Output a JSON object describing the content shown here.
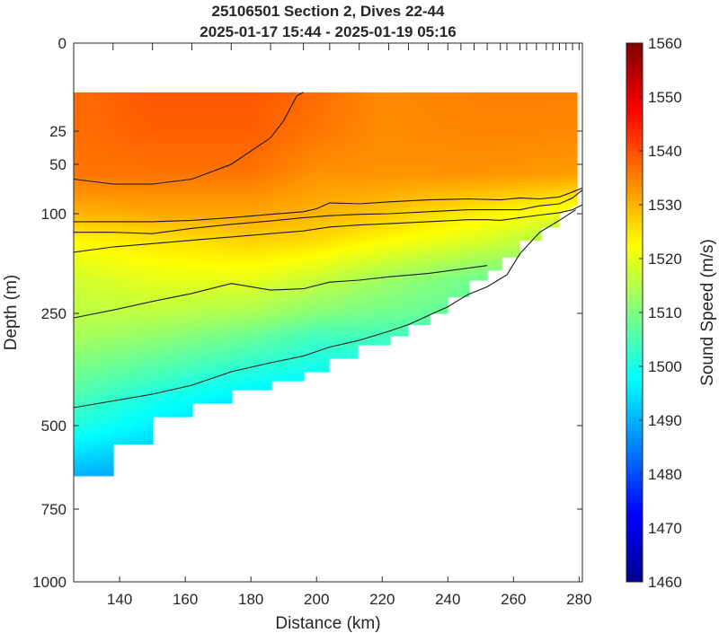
{
  "chart_data": {
    "type": "heatmap",
    "title": "25106501 Section 2, Dives 22-44",
    "subtitle": "2025-01-17 15:44 - 2025-01-19 05:16",
    "xlabel": "Distance (km)",
    "ylabel": "Depth (m)",
    "colorbar_label": "Sound Speed (m/s)",
    "xlim": [
      126,
      281
    ],
    "ylim": [
      0,
      1000
    ],
    "x_ticks": [
      140,
      160,
      180,
      200,
      220,
      240,
      260,
      280
    ],
    "x_tick_labels": [
      "140",
      "160",
      "180",
      "200",
      "220",
      "240",
      "260",
      "280"
    ],
    "y_ticks": [
      0,
      25,
      50,
      100,
      250,
      500,
      750,
      1000
    ],
    "y_tick_labels": [
      "0",
      "25",
      "50",
      "100",
      "250",
      "500",
      "750",
      "1000"
    ],
    "colorbar_range": [
      1460,
      1560
    ],
    "colorbar_ticks": [
      1460,
      1470,
      1480,
      1490,
      1500,
      1510,
      1520,
      1530,
      1540,
      1550,
      1560
    ],
    "colorbar_tick_labels": [
      "1460",
      "1470",
      "1480",
      "1490",
      "1500",
      "1510",
      "1520",
      "1530",
      "1540",
      "1550",
      "1560"
    ],
    "colormap": "jet",
    "colormap_stops": [
      "#00008f",
      "#0000ff",
      "#0080ff",
      "#00ffff",
      "#80ff80",
      "#ffff00",
      "#ff8000",
      "#ff0000",
      "#800000"
    ],
    "dive_markers_km": [
      138,
      150,
      162,
      174,
      186,
      196,
      204,
      213,
      222,
      228,
      234,
      240,
      244,
      248,
      252,
      256,
      258,
      262,
      264,
      267,
      270,
      272,
      274,
      276,
      278,
      280
    ],
    "data_top_depth_m": 14,
    "data_bottom": {
      "x": [
        126,
        138,
        138,
        150,
        150,
        162,
        162,
        174,
        174,
        186,
        186,
        196,
        196,
        204,
        204,
        213,
        213,
        222,
        222,
        228,
        228,
        234,
        234,
        240,
        240,
        246,
        246,
        252,
        252,
        256,
        256,
        262,
        262,
        268,
        268,
        274,
        274,
        279.6
      ],
      "depth": [
        650,
        650,
        555,
        555,
        480,
        480,
        450,
        450,
        420,
        420,
        400,
        400,
        380,
        380,
        350,
        350,
        320,
        320,
        300,
        300,
        275,
        275,
        250,
        250,
        225,
        225,
        200,
        200,
        185,
        185,
        165,
        165,
        140,
        140,
        120,
        120,
        100,
        90
      ]
    },
    "sound_speed_field": {
      "x": [
        126,
        150,
        180,
        200,
        220,
        250,
        280
      ],
      "depth": [
        14,
        60,
        100,
        140,
        200,
        300,
        450,
        650
      ],
      "values": [
        [
          1537,
          1539,
          1539,
          1537,
          1534,
          1535,
          1535
        ],
        [
          1536,
          1536,
          1536,
          1533,
          1533,
          1533,
          1532
        ],
        [
          1530,
          1531,
          1531,
          1530,
          1528,
          1524,
          1520
        ],
        [
          1523,
          1525,
          1527,
          1526,
          1523,
          1519,
          1513
        ],
        [
          1518,
          1520,
          1520,
          1517,
          1513,
          1508,
          1508
        ],
        [
          1514,
          1512,
          1508,
          1504,
          1504,
          1504,
          1504
        ],
        [
          1504,
          1499,
          1494,
          1494,
          1494,
          1494,
          1494
        ],
        [
          1490,
          1488,
          1488,
          1488,
          1488,
          1488,
          1488
        ]
      ]
    },
    "contours": [
      {
        "x": [
          126,
          138,
          150,
          162,
          174,
          186,
          190,
          194,
          196
        ],
        "depth": [
          65,
          70,
          70,
          65,
          50,
          30,
          22,
          15,
          14
        ]
      },
      {
        "x": [
          126,
          138,
          150,
          162,
          174,
          186,
          196,
          200,
          204,
          213,
          222,
          234,
          246,
          256,
          262,
          268,
          274,
          278,
          281
        ],
        "depth": [
          112,
          112,
          112,
          110,
          106,
          101,
          98,
          95,
          89,
          90,
          88,
          86,
          85,
          86,
          84,
          85,
          83,
          78,
          74
        ]
      },
      {
        "x": [
          126,
          138,
          150,
          162,
          174,
          186,
          196,
          204,
          213,
          222,
          234,
          246,
          256,
          262,
          268,
          274,
          278,
          281
        ],
        "depth": [
          128,
          128,
          130,
          122,
          116,
          111,
          106,
          103,
          101,
          100,
          98,
          96,
          96,
          96,
          92,
          90,
          84,
          76
        ]
      },
      {
        "x": [
          126,
          138,
          150,
          162,
          174,
          186,
          196,
          204,
          213,
          222,
          234,
          246,
          252,
          256,
          262,
          268,
          274,
          278,
          281
        ],
        "depth": [
          158,
          150,
          145,
          140,
          135,
          130,
          126,
          120,
          117,
          115,
          112,
          109,
          109,
          110,
          106,
          102,
          99,
          96,
          91
        ]
      },
      {
        "x": [
          126,
          138,
          150,
          162,
          174,
          186,
          196,
          204,
          213,
          222,
          234,
          246,
          252
        ],
        "depth": [
          260,
          245,
          232,
          220,
          205,
          215,
          213,
          203,
          200,
          195,
          190,
          182,
          178
        ]
      },
      {
        "x": [
          126,
          138,
          150,
          162,
          174,
          186,
          196,
          204,
          213,
          222,
          228,
          234,
          240,
          246,
          252,
          258,
          262,
          268,
          274,
          279
        ],
        "depth": [
          460,
          445,
          430,
          410,
          380,
          360,
          345,
          325,
          310,
          290,
          275,
          255,
          240,
          222,
          210,
          192,
          160,
          128,
          110,
          96
        ]
      }
    ]
  }
}
